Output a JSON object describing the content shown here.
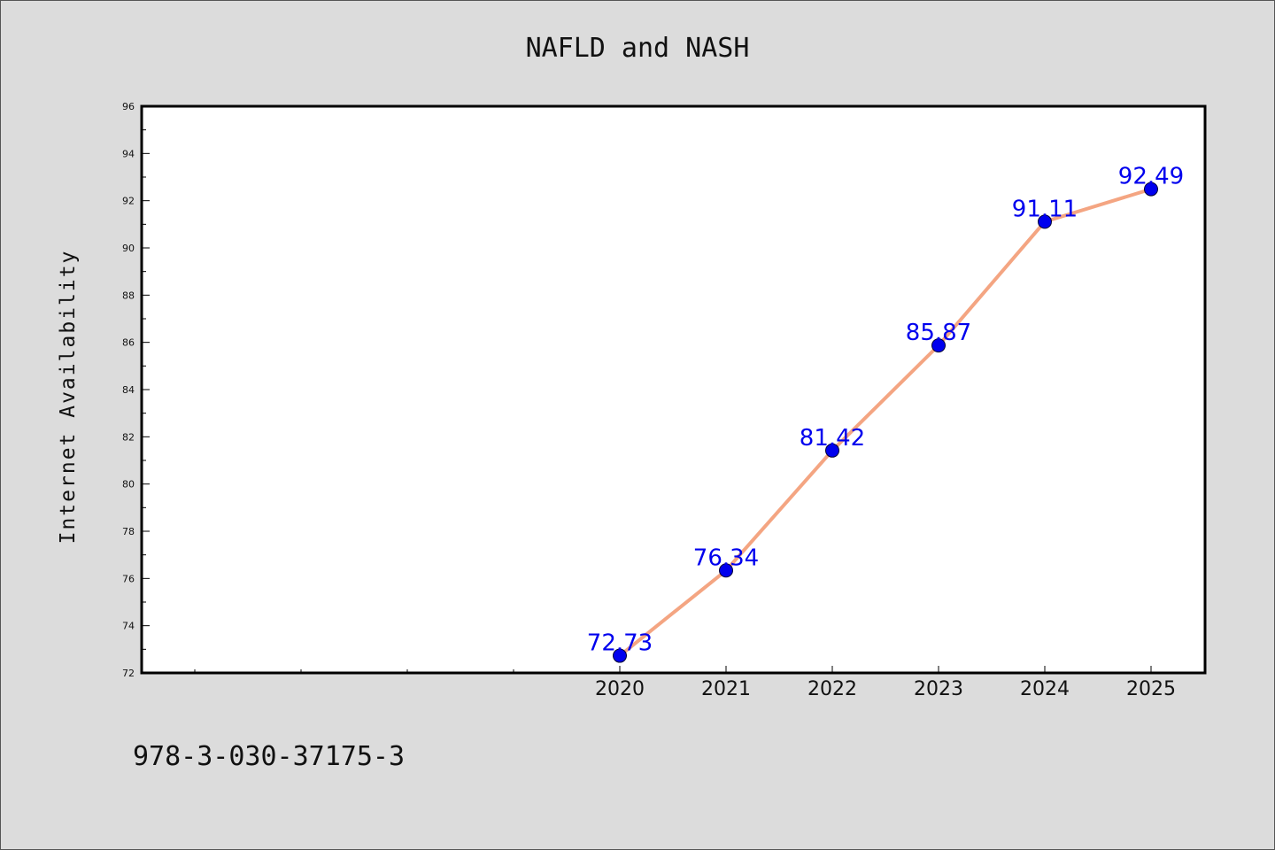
{
  "chart_data": {
    "type": "line",
    "title": "NAFLD and NASH",
    "xlabel": "",
    "ylabel": "Internet Availability",
    "x": [
      "2020",
      "2021",
      "2022",
      "2023",
      "2024",
      "2025"
    ],
    "series": [
      {
        "values": [
          72.73,
          76.34,
          81.42,
          85.87,
          91.11,
          92.49
        ]
      }
    ],
    "data_labels": [
      "72.73",
      "76.34",
      "81.42",
      "85.87",
      "91.11",
      "92.49"
    ],
    "ylim": [
      72,
      96
    ],
    "yticks": [
      72,
      74,
      76,
      78,
      80,
      82,
      84,
      86,
      88,
      90,
      92,
      94,
      96
    ],
    "grid": false,
    "line_color": "#f4a582",
    "marker_color": "#0000ee"
  },
  "footer": {
    "text": "978-3-030-37175-3"
  }
}
